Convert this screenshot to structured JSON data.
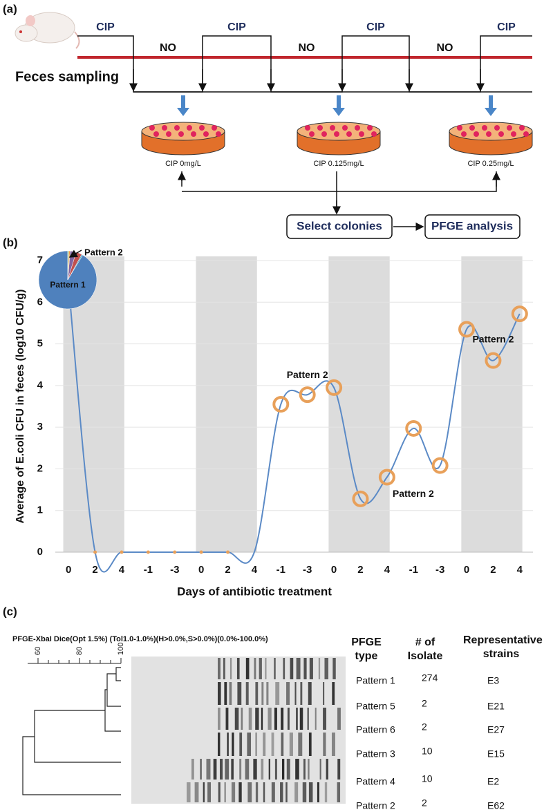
{
  "panel_a": {
    "label": "(a)",
    "phases": [
      "CIP",
      "NO",
      "CIP",
      "NO",
      "CIP",
      "NO",
      "CIP"
    ],
    "sampling": "Feces sampling",
    "plates": [
      "CIP 0mg/L",
      "CIP 0.125mg/L",
      "CIP 0.25mg/L"
    ],
    "steps": [
      "Select colonies",
      "PFGE analysis"
    ]
  },
  "chart_data": {
    "type": "line",
    "panel_label": "(b)",
    "x_label": "Days of antibiotic treatment",
    "y_label": "Average of E.coli CFU in feces (log10 CFU/g)",
    "categories": [
      "0",
      "2",
      "4",
      "-1",
      "-3",
      "0",
      "2",
      "4",
      "-1",
      "-3",
      "0",
      "2",
      "4",
      "-1",
      "-3",
      "0",
      "2",
      "4"
    ],
    "values": [
      6.4,
      0,
      0,
      0,
      0,
      0,
      0,
      0,
      3.55,
      3.78,
      3.95,
      1.28,
      1.8,
      2.97,
      2.08,
      5.35,
      4.6,
      5.72
    ],
    "color": "#5b8ac6",
    "marker_color": "#e8a05a",
    "ylim": [
      0,
      7
    ],
    "yticks": [
      0,
      1,
      2,
      3,
      4,
      5,
      6,
      7
    ],
    "grid": true,
    "annotations": [
      "Pattern 2",
      "Pattern 2",
      "Pattern 2"
    ],
    "inset_pie": {
      "labels": [
        "Pattern 1",
        "Pattern 2"
      ],
      "colors": [
        "#4f81bd",
        "#9bbb59",
        "#f79646",
        "#8064a2",
        "#c0504d",
        "#4bacc6"
      ]
    }
  },
  "panel_c": {
    "label": "(c)",
    "method": "PFGE-XbaI Dice(Opt 1.5%) (Tol1.0-1.0%)(H>0.0%,S>0.0%)(0.0%-100.0%)",
    "scale_ticks": [
      60,
      80,
      100
    ],
    "scale_lim": [
      55,
      100
    ],
    "headers": [
      "PFGE type",
      "# of Isolate",
      "Representative strains"
    ],
    "rows": [
      [
        "Pattern 1",
        274,
        "E3"
      ],
      [
        "Pattern 5",
        2,
        "E21"
      ],
      [
        "Pattern 6",
        2,
        "E27"
      ],
      [
        "Pattern 3",
        10,
        "E15"
      ],
      [
        "Pattern 4",
        10,
        "E2"
      ],
      [
        "Pattern 2",
        2,
        "E62"
      ]
    ]
  }
}
